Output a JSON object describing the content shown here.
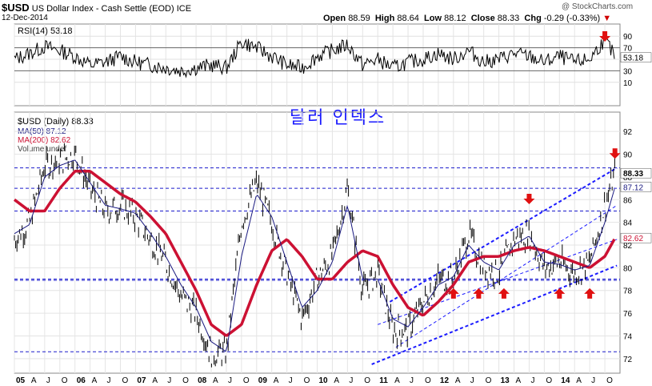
{
  "header": {
    "symbol": "$USD",
    "name": "US Dollar Index - Cash Settle (EOD)",
    "exchange": "ICE",
    "date": "12-Dec-2014",
    "watermark": "@ StockCharts.com",
    "open_label": "Open",
    "open": "88.59",
    "high_label": "High",
    "high": "88.64",
    "low_label": "Low",
    "low": "88.12",
    "close_label": "Close",
    "close": "88.33",
    "chg_label": "Chg",
    "chg": "-0.29 (-0.33%)"
  },
  "annotation_text": "달러 인덱스",
  "rsi_panel": {
    "label": "RSI(14)",
    "value": "53.18",
    "ticks": [
      "90",
      "70",
      "50",
      "30",
      "10"
    ]
  },
  "price_panel": {
    "legend_main": "$USD (Daily) 88.33",
    "legend_ma50": "MA(50) 87.12",
    "legend_ma200": "MA(200) 82.62",
    "legend_volume": "Volume undef",
    "ticks": [
      "92",
      "90",
      "88",
      "86",
      "84",
      "82",
      "80",
      "78",
      "76",
      "74",
      "72"
    ],
    "last_price_tag": "88.33",
    "ma50_tag": "87.12",
    "ma200_tag": "82.62"
  },
  "x_axis": {
    "labels": [
      "05",
      "A",
      "J",
      "O",
      "06",
      "A",
      "J",
      "O",
      "07",
      "A",
      "J",
      "O",
      "08",
      "A",
      "J",
      "O",
      "09",
      "A",
      "J",
      "O",
      "10",
      "A",
      "J",
      "O",
      "11",
      "A",
      "J",
      "O",
      "12",
      "A",
      "J",
      "O",
      "13",
      "A",
      "J",
      "O",
      "14",
      "A",
      "J",
      "O"
    ]
  },
  "colors": {
    "price_bars": "#000000",
    "ma50": "#1a1a80",
    "ma200": "#cc1133",
    "channel_lines": "#1a1aff",
    "support_lines": "#1a1acc",
    "arrows": "#e01010",
    "korean_text": "#1a1aff"
  },
  "chart_data": {
    "type": "line",
    "title": "$USD US Dollar Index - Cash Settle (EOD)",
    "x": [
      "2005-01",
      "2005-04",
      "2005-07",
      "2005-10",
      "2006-01",
      "2006-04",
      "2006-07",
      "2006-10",
      "2007-01",
      "2007-04",
      "2007-07",
      "2007-10",
      "2008-01",
      "2008-04",
      "2008-07",
      "2008-10",
      "2009-01",
      "2009-04",
      "2009-07",
      "2009-10",
      "2010-01",
      "2010-04",
      "2010-07",
      "2010-10",
      "2011-01",
      "2011-04",
      "2011-07",
      "2011-10",
      "2012-01",
      "2012-04",
      "2012-07",
      "2012-10",
      "2013-01",
      "2013-04",
      "2013-07",
      "2013-10",
      "2014-01",
      "2014-04",
      "2014-07",
      "2014-10",
      "2014-12"
    ],
    "series": [
      {
        "name": "$USD (Daily)",
        "values": [
          82.5,
          84.0,
          89.0,
          89.5,
          90.0,
          87.0,
          85.0,
          85.5,
          84.5,
          82.5,
          80.5,
          77.5,
          76.0,
          72.5,
          72.5,
          84.0,
          87.5,
          84.0,
          79.5,
          75.5,
          79.0,
          81.0,
          87.0,
          78.0,
          79.5,
          74.5,
          74.5,
          77.0,
          79.0,
          79.0,
          83.0,
          80.0,
          79.5,
          82.5,
          83.0,
          80.0,
          80.5,
          79.5,
          80.5,
          85.5,
          88.3
        ]
      },
      {
        "name": "MA(50)",
        "values": [
          83.0,
          83.8,
          88.0,
          89.0,
          89.5,
          87.5,
          85.5,
          85.2,
          84.8,
          83.0,
          81.0,
          78.5,
          76.5,
          73.5,
          72.6,
          81.0,
          86.5,
          84.5,
          80.5,
          76.5,
          78.0,
          80.5,
          85.5,
          79.0,
          79.0,
          75.5,
          74.8,
          76.5,
          78.5,
          79.2,
          82.0,
          80.5,
          79.8,
          82.0,
          82.8,
          80.5,
          80.3,
          79.8,
          80.2,
          84.0,
          87.1
        ]
      },
      {
        "name": "MA(200)",
        "values": [
          86.0,
          85.0,
          85.0,
          87.0,
          88.5,
          88.5,
          87.5,
          86.5,
          85.8,
          84.5,
          83.0,
          80.5,
          78.0,
          75.0,
          74.0,
          75.0,
          78.5,
          81.5,
          82.5,
          81.0,
          79.0,
          79.0,
          80.5,
          81.5,
          81.0,
          78.5,
          76.5,
          75.8,
          77.0,
          78.5,
          80.5,
          81.0,
          81.0,
          81.5,
          81.8,
          81.5,
          81.0,
          80.5,
          80.0,
          81.0,
          82.6
        ]
      },
      {
        "name": "RSI(14)",
        "values": [
          50,
          60,
          72,
          65,
          55,
          40,
          45,
          55,
          45,
          40,
          35,
          30,
          35,
          40,
          35,
          80,
          70,
          55,
          40,
          35,
          55,
          65,
          75,
          40,
          50,
          35,
          45,
          50,
          60,
          50,
          65,
          45,
          50,
          60,
          55,
          45,
          55,
          45,
          50,
          85,
          53.18
        ]
      }
    ],
    "xlabel": "",
    "ylabel": "",
    "ylim": [
      71,
      93
    ],
    "rsi_ylim": [
      0,
      100
    ],
    "grid": true,
    "legend": "top-left",
    "annotations": {
      "up_arrows": [
        "2012-04",
        "2012-09",
        "2013-02",
        "2014-01",
        "2014-07"
      ],
      "down_arrows": [
        "2013-07",
        "2014-12"
      ],
      "rsi_down_arrow": "2014-10"
    }
  }
}
